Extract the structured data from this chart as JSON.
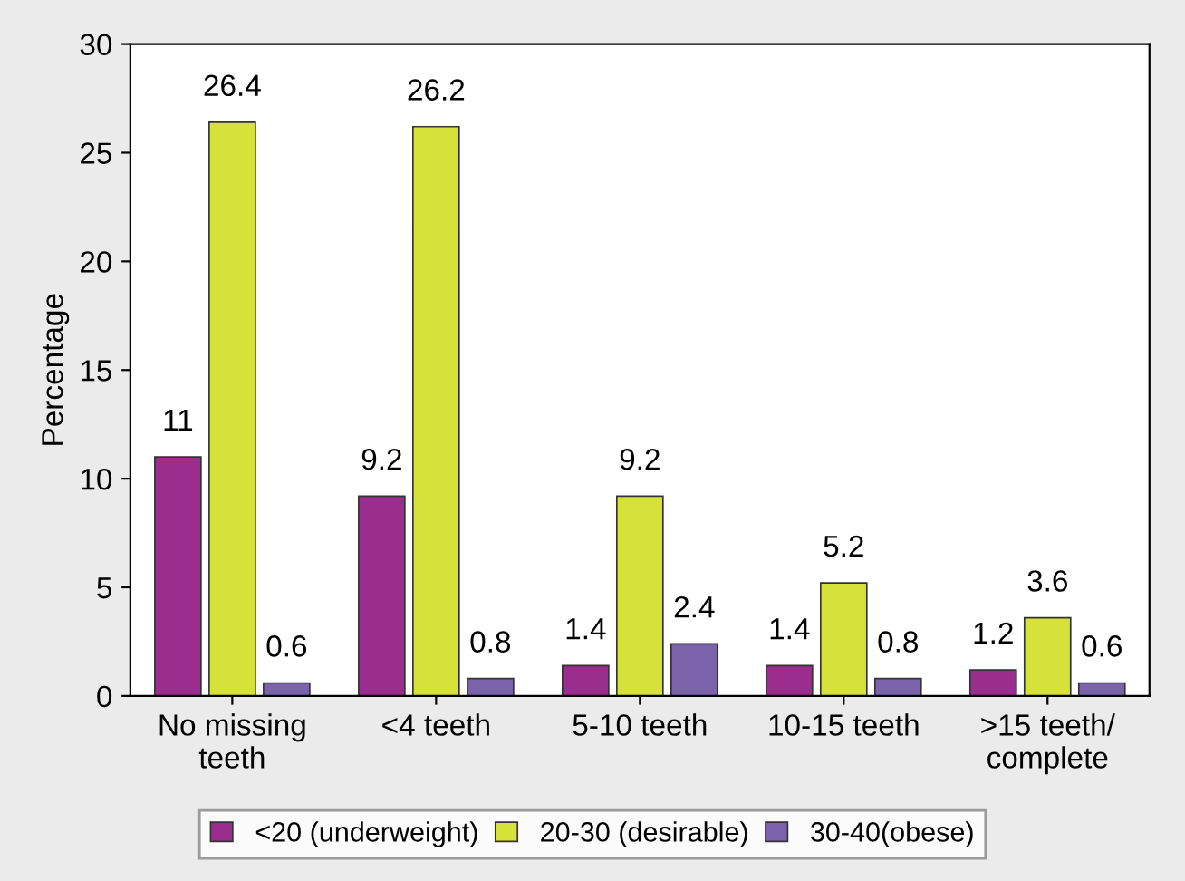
{
  "chart_data": {
    "type": "bar",
    "ylabel": "Percentage",
    "categories": [
      "No missing\nteeth",
      "<4 teeth",
      "5-10 teeth",
      "10-15 teeth",
      ">15 teeth/\ncomplete"
    ],
    "series": [
      {
        "name": "<20 (underweight)",
        "color": "#9b2d8f",
        "values": [
          11,
          9.2,
          1.4,
          1.4,
          1.2
        ]
      },
      {
        "name": "20-30 (desirable)",
        "color": "#d6e23a",
        "values": [
          26.4,
          26.2,
          9.2,
          5.2,
          3.6
        ]
      },
      {
        "name": "30-40(obese)",
        "color": "#7a63ab",
        "values": [
          0.6,
          0.8,
          2.4,
          0.8,
          0.6
        ]
      }
    ],
    "ylim": [
      0,
      30
    ],
    "yticks": [
      0,
      5,
      10,
      15,
      20,
      25,
      30
    ],
    "grid": false,
    "legend": "bottom",
    "data_labels": true
  }
}
